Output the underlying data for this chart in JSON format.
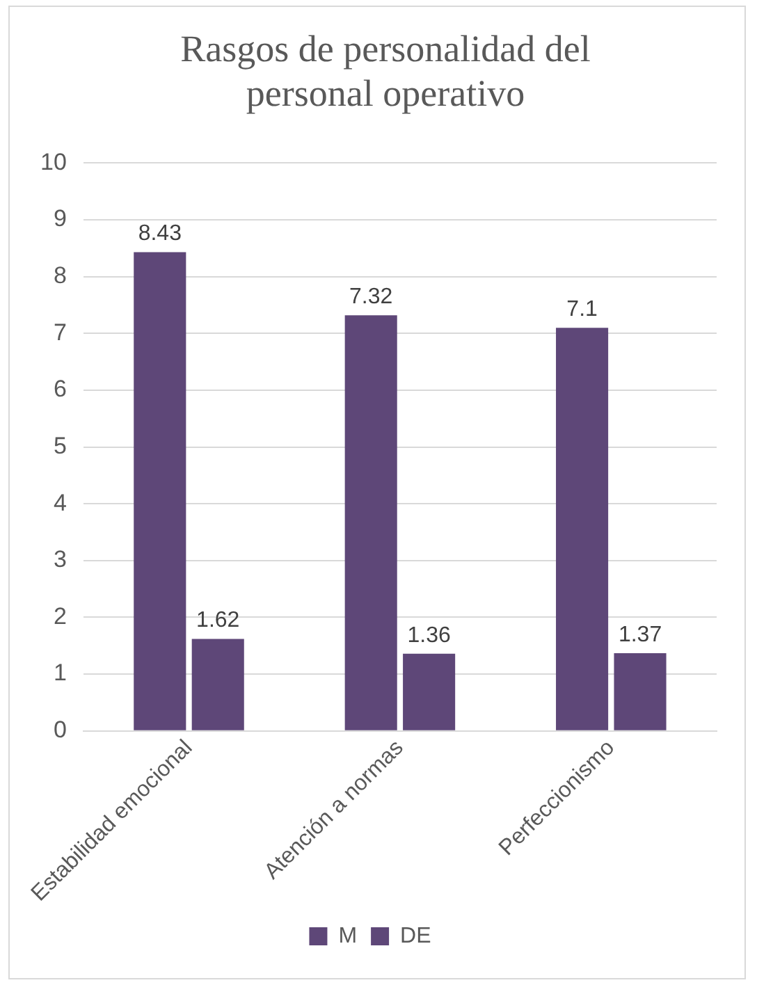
{
  "chart_data": {
    "type": "bar",
    "title": "Rasgos de personalidad del personal operativo",
    "categories": [
      "Estabilidad emocional",
      "Atención a normas",
      "Perfeccionismo"
    ],
    "series": [
      {
        "name": "M",
        "color": "#5e4778",
        "values": [
          8.43,
          7.32,
          7.1
        ]
      },
      {
        "name": "DE",
        "color": "#5e4778",
        "values": [
          1.62,
          1.36,
          1.37
        ]
      }
    ],
    "ylim": [
      0,
      10
    ],
    "yticks": [
      0,
      1,
      2,
      3,
      4,
      5,
      6,
      7,
      8,
      9,
      10
    ],
    "grid": "y",
    "legend": "bottom",
    "data_labels": true
  }
}
